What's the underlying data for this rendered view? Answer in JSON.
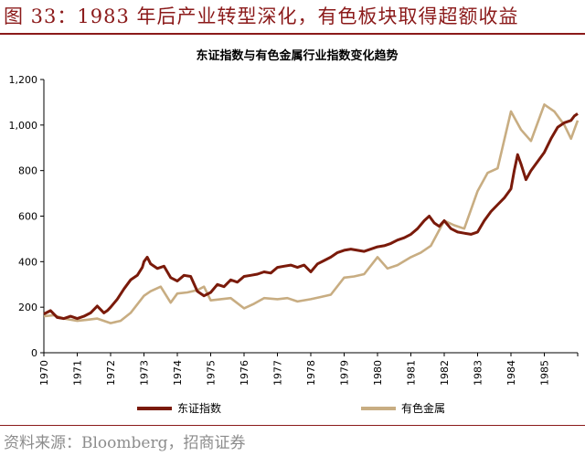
{
  "figure": {
    "title": "图 33：1983 年后产业转型深化，有色板块取得超额收益",
    "source": "资料来源：Bloomberg，招商证券"
  },
  "chart_data": {
    "type": "line",
    "title": "东证指数与有色金属行业指数变化趋势",
    "xlabel": "",
    "ylabel": "",
    "xlim": [
      1970,
      1986
    ],
    "ylim": [
      0,
      1200
    ],
    "yticks": [
      0,
      200,
      400,
      600,
      800,
      1000,
      1200
    ],
    "ytick_labels": [
      "0",
      "200",
      "400",
      "600",
      "800",
      "1,000",
      "1,200"
    ],
    "xticks": [
      1970,
      1971,
      1972,
      1973,
      1974,
      1975,
      1976,
      1977,
      1978,
      1979,
      1980,
      1981,
      1982,
      1983,
      1984,
      1985
    ],
    "grid": false,
    "legend": "bottom",
    "colors": {
      "东证指数": "#7a1a0a",
      "有色金属": "#c8ad82"
    },
    "series": [
      {
        "name": "东证指数",
        "x": [
          1970.0,
          1970.2,
          1970.4,
          1970.6,
          1970.8,
          1971.0,
          1971.2,
          1971.4,
          1971.6,
          1971.8,
          1971.9,
          1972.0,
          1972.2,
          1972.4,
          1972.6,
          1972.8,
          1972.95,
          1973.0,
          1973.1,
          1973.2,
          1973.4,
          1973.6,
          1973.8,
          1974.0,
          1974.2,
          1974.4,
          1974.6,
          1974.8,
          1975.0,
          1975.2,
          1975.4,
          1975.6,
          1975.8,
          1976.0,
          1976.2,
          1976.4,
          1976.6,
          1976.8,
          1977.0,
          1977.2,
          1977.4,
          1977.6,
          1977.8,
          1978.0,
          1978.2,
          1978.4,
          1978.6,
          1978.8,
          1979.0,
          1979.2,
          1979.4,
          1979.6,
          1979.8,
          1980.0,
          1980.2,
          1980.4,
          1980.6,
          1980.8,
          1981.0,
          1981.2,
          1981.4,
          1981.55,
          1981.7,
          1981.85,
          1982.0,
          1982.2,
          1982.4,
          1982.6,
          1982.8,
          1983.0,
          1983.2,
          1983.4,
          1983.6,
          1983.8,
          1984.0,
          1984.1,
          1984.2,
          1984.3,
          1984.45,
          1984.6,
          1984.8,
          1985.0,
          1985.2,
          1985.4,
          1985.5,
          1985.6,
          1985.8,
          1985.9,
          1986.0
        ],
        "values": [
          170,
          185,
          155,
          150,
          160,
          150,
          160,
          175,
          205,
          175,
          185,
          200,
          235,
          280,
          320,
          340,
          375,
          400,
          420,
          390,
          370,
          380,
          330,
          315,
          340,
          335,
          270,
          250,
          265,
          300,
          290,
          320,
          310,
          335,
          340,
          345,
          355,
          350,
          375,
          380,
          385,
          375,
          385,
          355,
          390,
          405,
          420,
          440,
          450,
          455,
          450,
          445,
          455,
          465,
          470,
          480,
          495,
          505,
          520,
          545,
          580,
          600,
          570,
          555,
          580,
          545,
          530,
          525,
          520,
          530,
          580,
          620,
          650,
          680,
          720,
          800,
          870,
          830,
          760,
          800,
          840,
          880,
          940,
          990,
          1000,
          1010,
          1020,
          1040,
          1050
        ]
      },
      {
        "name": "有色金属",
        "x": [
          1970.0,
          1970.3,
          1970.6,
          1971.0,
          1971.3,
          1971.6,
          1972.0,
          1972.3,
          1972.6,
          1973.0,
          1973.2,
          1973.5,
          1973.8,
          1974.0,
          1974.3,
          1974.6,
          1974.8,
          1975.0,
          1975.3,
          1975.6,
          1976.0,
          1976.3,
          1976.6,
          1977.0,
          1977.3,
          1977.6,
          1978.0,
          1978.3,
          1978.6,
          1979.0,
          1979.3,
          1979.6,
          1980.0,
          1980.3,
          1980.6,
          1981.0,
          1981.3,
          1981.6,
          1982.0,
          1982.3,
          1982.6,
          1983.0,
          1983.3,
          1983.6,
          1984.0,
          1984.3,
          1984.6,
          1985.0,
          1985.3,
          1985.6,
          1985.8,
          1986.0
        ],
        "values": [
          160,
          165,
          150,
          140,
          145,
          150,
          130,
          140,
          175,
          250,
          270,
          290,
          220,
          260,
          265,
          275,
          290,
          230,
          235,
          240,
          195,
          215,
          240,
          235,
          240,
          225,
          235,
          245,
          255,
          330,
          335,
          345,
          420,
          370,
          385,
          420,
          440,
          470,
          580,
          560,
          545,
          710,
          790,
          810,
          1060,
          980,
          930,
          1090,
          1060,
          1000,
          940,
          1020
        ]
      }
    ]
  }
}
